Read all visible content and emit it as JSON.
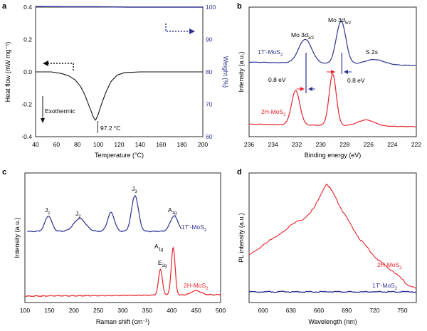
{
  "chart_data": [
    {
      "panel": "a",
      "type": "line",
      "xlabel": "Temperature (°C)",
      "ylabel": "Heat flow (mW mg⁻¹)",
      "ylabel_right": "Weight (%)",
      "xlim": [
        40,
        200
      ],
      "ylim": [
        -0.4,
        0.4
      ],
      "ylim_right": [
        60,
        100
      ],
      "xticks": [
        "40",
        "60",
        "80",
        "100",
        "120",
        "140",
        "160",
        "180",
        "200"
      ],
      "yticks": [
        "-0.4",
        "-0.2",
        "0.0",
        "0.2",
        "0.4"
      ],
      "yticks_right": [
        "60",
        "70",
        "80",
        "90",
        "100"
      ],
      "colors": {
        "dsc": "#111111",
        "weight": "#2e3192",
        "arrow_left": "#111111",
        "arrow_right": "#2e3192"
      },
      "series": [
        {
          "axis": "left",
          "x": [
            40,
            55,
            65,
            72,
            78,
            83,
            87,
            90,
            93,
            95,
            96.5,
            97.2,
            98,
            100,
            103,
            107,
            112,
            118,
            125,
            140,
            160,
            180,
            200
          ],
          "y": [
            0.0,
            0.0,
            -0.01,
            -0.025,
            -0.05,
            -0.09,
            -0.14,
            -0.19,
            -0.24,
            -0.275,
            -0.292,
            -0.298,
            -0.29,
            -0.26,
            -0.2,
            -0.13,
            -0.06,
            -0.02,
            -0.005,
            0.0,
            0.0,
            0.0,
            0.0
          ]
        },
        {
          "axis": "right",
          "x": [
            40,
            70,
            100,
            130,
            160,
            200
          ],
          "y": [
            100.2,
            100.1,
            100.1,
            100.0,
            100.0,
            100.0
          ]
        }
      ],
      "annotations": {
        "peak": "97.2 °C",
        "exothermic": "Exothermic"
      }
    },
    {
      "panel": "b",
      "type": "line",
      "xlabel": "Binding energy (eV)",
      "ylabel": "Intensity (a.u.)",
      "xlim": [
        236,
        222
      ],
      "xticks": [
        "236",
        "234",
        "232",
        "230",
        "228",
        "226",
        "224",
        "222"
      ],
      "colors": {
        "1T": "#2e3192",
        "2H": "#e8242b"
      },
      "series": [
        {
          "name": "1T′-MoS2",
          "peaks": [
            {
              "center": 231.3,
              "height": 0.28,
              "width": 0.55
            },
            {
              "center": 228.3,
              "height": 0.5,
              "width": 0.4
            },
            {
              "center": 225.5,
              "height": 0.06,
              "width": 0.8
            }
          ]
        },
        {
          "name": "2H-MoS2",
          "peaks": [
            {
              "center": 232.1,
              "height": 0.4,
              "width": 0.35
            },
            {
              "center": 229.0,
              "height": 0.6,
              "width": 0.3
            },
            {
              "center": 226.2,
              "height": 0.07,
              "width": 0.7
            }
          ]
        }
      ],
      "annotations": {
        "mo3d32": "Mo 3d3/2",
        "mo3d52": "Mo 3d5/2",
        "s2s": "S 2s",
        "shift_left": "0.8 eV",
        "shift_right": "0.8 eV"
      }
    },
    {
      "panel": "c",
      "type": "line",
      "xlabel": "Raman shift (cm⁻¹)",
      "ylabel": "Intensity (a.u.)",
      "xlim": [
        100,
        500
      ],
      "xticks": [
        "100",
        "150",
        "200",
        "250",
        "300",
        "350",
        "400",
        "450",
        "500"
      ],
      "colors": {
        "1T": "#2e3192",
        "2H": "#e8242b"
      },
      "series": [
        {
          "name": "1T′-MoS2",
          "peaks": [
            {
              "center": 148,
              "height": 0.18,
              "width": 7
            },
            {
              "center": 212,
              "height": 0.15,
              "width": 12
            },
            {
              "center": 276,
              "height": 0.22,
              "width": 7
            },
            {
              "center": 325,
              "height": 0.42,
              "width": 7
            },
            {
              "center": 405,
              "height": 0.18,
              "width": 8
            }
          ]
        },
        {
          "name": "2H-MoS2",
          "peaks": [
            {
              "center": 377,
              "height": 0.3,
              "width": 4
            },
            {
              "center": 403,
              "height": 0.55,
              "width": 4
            },
            {
              "center": 450,
              "height": 0.05,
              "width": 10
            }
          ]
        }
      ],
      "annotations": {
        "j1": "J1",
        "j2": "J2",
        "j3": "J3",
        "a1g_1t": "A1g",
        "e2g": "E2g",
        "a1g_2h": "A1g"
      }
    },
    {
      "panel": "d",
      "type": "line",
      "xlabel": "Wavelength (nm)",
      "ylabel": "PL intensity (a.u.)",
      "xlim": [
        585,
        765
      ],
      "xticks": [
        "600",
        "630",
        "660",
        "690",
        "720",
        "750"
      ],
      "colors": {
        "1T": "#2e3192",
        "2H": "#e8242b"
      },
      "series": [
        {
          "name": "2H-MoS2",
          "x": [
            585,
            600,
            615,
            630,
            645,
            655,
            662,
            668,
            672,
            678,
            685,
            695,
            705,
            715,
            725,
            735,
            745,
            755,
            765
          ],
          "y": [
            0.34,
            0.42,
            0.51,
            0.6,
            0.67,
            0.76,
            0.88,
            0.97,
            0.95,
            0.85,
            0.74,
            0.6,
            0.47,
            0.37,
            0.28,
            0.22,
            0.15,
            0.07,
            0.03
          ]
        },
        {
          "name": "1T′-MoS2",
          "x": [
            585,
            765
          ],
          "y": [
            0.0,
            0.0
          ]
        }
      ]
    }
  ],
  "panel_letters": [
    "a",
    "b",
    "c",
    "d"
  ],
  "labels": {
    "b_1t": "1T′-MoS2",
    "b_2h": "2H-MoS2",
    "c_1t": "1T′-MoS2",
    "c_2h": "2H-MoS2",
    "d_2h": "2H-MoS2",
    "d_1t": "1T′-MoS2"
  }
}
